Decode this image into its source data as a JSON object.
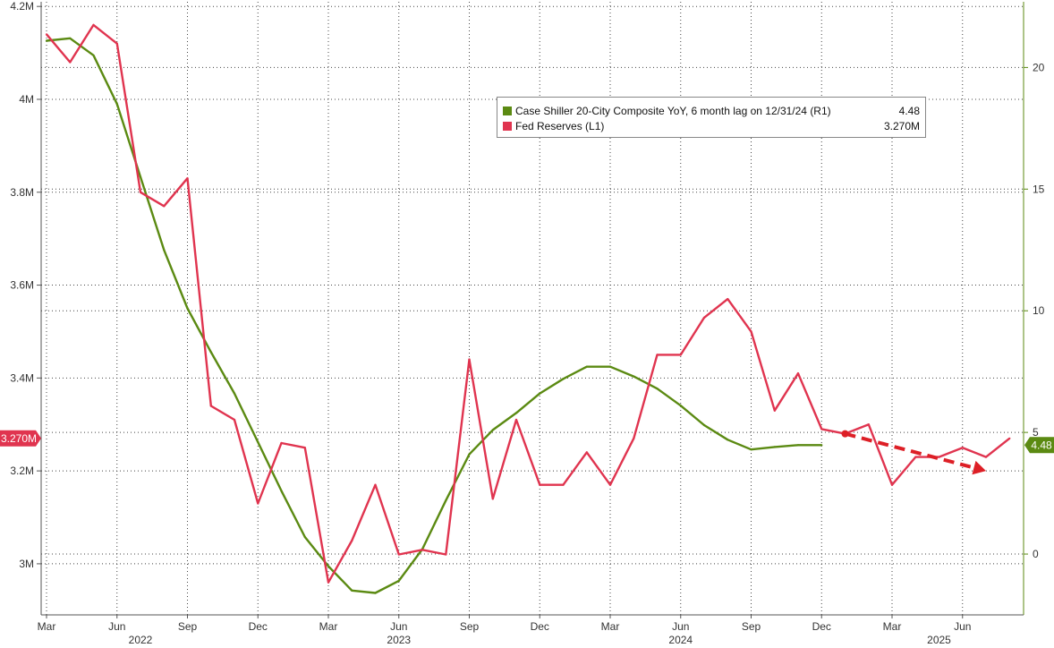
{
  "chart_data": {
    "type": "line",
    "series": [
      {
        "name": "Case Shiller 20-City Composite YoY, 6 month lag on 12/31/24 (R1)",
        "latest_label": "4.48",
        "color": "#5b8a12",
        "axis": "right",
        "x": [
          "2022-03",
          "2022-04",
          "2022-05",
          "2022-06",
          "2022-07",
          "2022-08",
          "2022-09",
          "2022-10",
          "2022-11",
          "2022-12",
          "2023-01",
          "2023-02",
          "2023-03",
          "2023-04",
          "2023-05",
          "2023-06",
          "2023-07",
          "2023-08",
          "2023-09",
          "2023-10",
          "2023-11",
          "2023-12",
          "2024-01",
          "2024-02",
          "2024-03",
          "2024-04",
          "2024-05",
          "2024-06",
          "2024-07",
          "2024-08",
          "2024-09",
          "2024-10",
          "2024-11",
          "2024-12"
        ],
        "values": [
          21.1,
          21.2,
          20.5,
          18.5,
          15.5,
          12.5,
          10.1,
          8.3,
          6.6,
          4.6,
          2.6,
          0.7,
          -0.5,
          -1.5,
          -1.6,
          -1.1,
          0.2,
          2.2,
          4.1,
          5.1,
          5.8,
          6.6,
          7.2,
          7.7,
          7.7,
          7.3,
          6.8,
          6.1,
          5.3,
          4.7,
          4.3,
          4.4,
          4.48,
          4.48
        ]
      },
      {
        "name": "Fed Reserves (L1)",
        "latest_label": "3.270M",
        "color": "#e0344f",
        "axis": "left",
        "x": [
          "2022-03",
          "2022-04",
          "2022-05",
          "2022-06",
          "2022-07",
          "2022-08",
          "2022-09",
          "2022-10",
          "2022-11",
          "2022-12",
          "2023-01",
          "2023-02",
          "2023-03",
          "2023-04",
          "2023-05",
          "2023-06",
          "2023-07",
          "2023-08",
          "2023-09",
          "2023-10",
          "2023-11",
          "2023-12",
          "2024-01",
          "2024-02",
          "2024-03",
          "2024-04",
          "2024-05",
          "2024-06",
          "2024-07",
          "2024-08",
          "2024-09",
          "2024-10",
          "2024-11",
          "2024-12",
          "2025-01",
          "2025-02",
          "2025-03",
          "2025-04",
          "2025-05",
          "2025-06",
          "2025-07",
          "2025-08"
        ],
        "values": [
          4.14,
          4.08,
          4.16,
          4.12,
          3.8,
          3.77,
          3.83,
          3.34,
          3.31,
          3.13,
          3.26,
          3.25,
          2.96,
          3.05,
          3.17,
          3.02,
          3.03,
          3.02,
          3.44,
          3.14,
          3.31,
          3.17,
          3.17,
          3.24,
          3.17,
          3.27,
          3.45,
          3.45,
          3.53,
          3.57,
          3.5,
          3.33,
          3.41,
          3.29,
          3.28,
          3.3,
          3.17,
          3.23,
          3.23,
          3.25,
          3.23,
          3.27
        ]
      }
    ],
    "trend_arrow": {
      "color": "#dd1f26",
      "from": {
        "x": "2025-01",
        "y": 3.28
      },
      "to": {
        "x": "2025-07",
        "y": 3.2
      }
    },
    "left_axis": {
      "ylim": [
        2.89,
        4.21
      ],
      "ticks": [
        {
          "value": 3.0,
          "label": "3M"
        },
        {
          "value": 3.2,
          "label": "3.2M"
        },
        {
          "value": 3.4,
          "label": "3.4M"
        },
        {
          "value": 3.6,
          "label": "3.6M"
        },
        {
          "value": 3.8,
          "label": "3.8M"
        },
        {
          "value": 4.0,
          "label": "4M"
        },
        {
          "value": 4.2,
          "label": "4.2M"
        }
      ],
      "last_value_label": "3.270M"
    },
    "right_axis": {
      "ylim": [
        -2.5,
        22.7
      ],
      "ticks": [
        {
          "value": 0,
          "label": "0"
        },
        {
          "value": 5,
          "label": "5"
        },
        {
          "value": 10,
          "label": "10"
        },
        {
          "value": 15,
          "label": "15"
        },
        {
          "value": 20,
          "label": "20"
        }
      ],
      "last_value_label": "4.48"
    },
    "x_axis": {
      "month_ticks": [
        {
          "x": "2022-03",
          "label": "Mar"
        },
        {
          "x": "2022-06",
          "label": "Jun"
        },
        {
          "x": "2022-09",
          "label": "Sep"
        },
        {
          "x": "2022-12",
          "label": "Dec"
        },
        {
          "x": "2023-03",
          "label": "Mar"
        },
        {
          "x": "2023-06",
          "label": "Jun"
        },
        {
          "x": "2023-09",
          "label": "Sep"
        },
        {
          "x": "2023-12",
          "label": "Dec"
        },
        {
          "x": "2024-03",
          "label": "Mar"
        },
        {
          "x": "2024-06",
          "label": "Jun"
        },
        {
          "x": "2024-09",
          "label": "Sep"
        },
        {
          "x": "2024-12",
          "label": "Dec"
        },
        {
          "x": "2025-03",
          "label": "Mar"
        },
        {
          "x": "2025-06",
          "label": "Jun"
        }
      ],
      "year_labels": [
        {
          "x": "2022-07",
          "label": "2022"
        },
        {
          "x": "2023-06",
          "label": "2023"
        },
        {
          "x": "2024-06",
          "label": "2024"
        },
        {
          "x": "2025-05",
          "label": "2025"
        }
      ]
    },
    "grid": true,
    "legend_position": "top-right"
  }
}
